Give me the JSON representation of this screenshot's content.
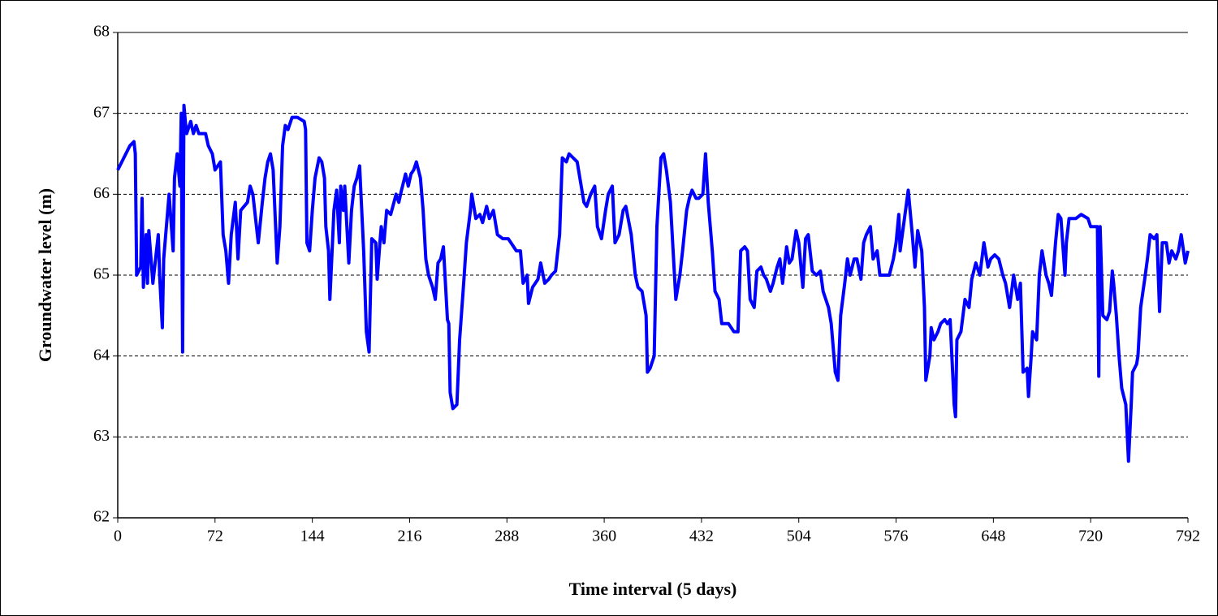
{
  "chart_data": {
    "type": "line",
    "xlabel": "Time interval (5 days)",
    "ylabel": "Groundwater level (m)",
    "color": "#0000ff",
    "grid": true,
    "xlim": [
      0,
      792
    ],
    "ylim": [
      62,
      68
    ],
    "xticks": [
      0,
      72,
      144,
      216,
      288,
      360,
      432,
      504,
      576,
      648,
      720,
      792
    ],
    "yticks": [
      62,
      63,
      64,
      65,
      66,
      67,
      68
    ],
    "x": [
      0,
      3,
      9,
      12,
      13,
      14,
      17,
      18,
      19,
      21,
      22,
      23,
      26,
      28,
      30,
      31,
      33,
      34,
      37,
      38,
      41,
      42,
      44,
      46,
      47,
      48,
      49,
      50,
      51,
      54,
      56,
      58,
      60,
      65,
      67,
      70,
      72,
      76,
      78,
      80,
      82,
      84,
      87,
      89,
      91,
      96,
      98,
      100,
      102,
      104,
      107,
      109,
      111,
      113,
      115,
      118,
      120,
      122,
      124,
      126,
      129,
      133,
      138,
      139,
      140,
      142,
      144,
      146,
      149,
      151,
      153,
      154,
      156,
      157,
      160,
      162,
      164,
      165,
      167,
      168,
      171,
      173,
      175,
      177,
      179,
      182,
      184,
      186,
      188,
      191,
      192,
      194,
      195,
      197,
      199,
      202,
      206,
      208,
      210,
      213,
      215,
      217,
      219,
      221,
      224,
      226,
      228,
      230,
      233,
      235,
      237,
      239,
      241,
      244,
      245,
      246,
      248,
      251,
      253,
      256,
      258,
      261,
      262,
      265,
      268,
      270,
      273,
      275,
      278,
      281,
      285,
      289,
      293,
      295,
      298,
      300,
      303,
      304,
      307,
      311,
      313,
      316,
      319,
      321,
      324,
      327,
      329,
      332,
      334,
      337,
      340,
      342,
      345,
      347,
      350,
      353,
      355,
      358,
      361,
      363,
      366,
      368,
      371,
      374,
      376,
      380,
      383,
      385,
      388,
      391,
      392,
      394,
      397,
      399,
      402,
      404,
      406,
      409,
      411,
      413,
      416,
      418,
      421,
      423,
      425,
      428,
      430,
      433,
      435,
      437,
      440,
      442,
      445,
      447,
      452,
      456,
      459,
      461,
      464,
      466,
      468,
      471,
      473,
      476,
      478,
      480,
      483,
      485,
      488,
      490,
      492,
      495,
      497,
      499,
      502,
      504,
      507,
      509,
      511,
      514,
      517,
      520,
      522,
      526,
      528,
      531,
      533,
      535,
      538,
      540,
      542,
      545,
      547,
      550,
      552,
      554,
      557,
      559,
      562,
      564,
      571,
      574,
      576,
      578,
      579,
      583,
      585,
      588,
      590,
      592,
      595,
      597,
      598,
      601,
      602,
      604,
      607,
      609,
      612,
      614,
      616,
      619,
      620,
      621,
      624,
      627,
      630,
      632,
      635,
      638,
      641,
      644,
      646,
      649,
      652,
      655,
      657,
      660,
      663,
      666,
      668,
      670,
      673,
      674,
      676,
      677,
      680,
      682,
      684,
      687,
      689,
      691,
      694,
      696,
      698,
      701,
      702,
      704,
      709,
      713,
      718,
      720,
      723,
      725,
      726,
      727,
      729,
      732,
      734,
      736,
      737,
      739,
      741,
      743,
      746,
      748,
      750,
      751,
      754,
      755,
      757,
      760,
      762,
      764,
      767,
      769,
      771,
      773,
      776,
      778,
      780,
      783,
      785,
      787,
      790,
      792
    ],
    "values": [
      66.3,
      66.4,
      66.6,
      66.65,
      66.5,
      65.0,
      65.1,
      65.95,
      64.85,
      65.5,
      64.9,
      65.55,
      64.9,
      65.2,
      65.5,
      65.0,
      64.35,
      65.2,
      65.8,
      66.0,
      65.3,
      66.2,
      66.5,
      66.1,
      67.0,
      64.05,
      67.1,
      66.9,
      66.75,
      66.9,
      66.75,
      66.85,
      66.75,
      66.75,
      66.6,
      66.5,
      66.3,
      66.4,
      65.5,
      65.3,
      64.9,
      65.5,
      65.9,
      65.2,
      65.8,
      65.9,
      66.1,
      66.0,
      65.7,
      65.4,
      65.9,
      66.2,
      66.4,
      66.5,
      66.3,
      65.15,
      65.6,
      66.6,
      66.85,
      66.8,
      66.95,
      66.95,
      66.9,
      66.8,
      65.4,
      65.3,
      65.8,
      66.2,
      66.45,
      66.4,
      66.2,
      65.6,
      65.3,
      64.7,
      65.8,
      66.05,
      65.4,
      66.1,
      65.8,
      66.1,
      65.15,
      65.8,
      66.1,
      66.2,
      66.35,
      65.3,
      64.3,
      64.05,
      65.45,
      65.4,
      64.95,
      65.4,
      65.6,
      65.4,
      65.8,
      65.75,
      66.0,
      65.9,
      66.05,
      66.25,
      66.1,
      66.25,
      66.3,
      66.4,
      66.2,
      65.8,
      65.2,
      65.0,
      64.85,
      64.7,
      65.15,
      65.2,
      65.35,
      64.45,
      64.4,
      63.55,
      63.35,
      63.4,
      64.2,
      64.9,
      65.4,
      65.8,
      66.0,
      65.7,
      65.75,
      65.65,
      65.85,
      65.7,
      65.8,
      65.5,
      65.45,
      65.45,
      65.35,
      65.3,
      65.3,
      64.9,
      65.0,
      64.65,
      64.85,
      64.95,
      65.15,
      64.9,
      64.95,
      65.0,
      65.05,
      65.5,
      66.45,
      66.4,
      66.5,
      66.45,
      66.4,
      66.2,
      65.9,
      65.85,
      66.0,
      66.1,
      65.6,
      65.45,
      65.8,
      66.0,
      66.1,
      65.4,
      65.5,
      65.8,
      65.85,
      65.5,
      65.0,
      64.85,
      64.8,
      64.5,
      63.8,
      63.85,
      64.0,
      65.6,
      66.45,
      66.5,
      66.3,
      65.9,
      65.3,
      64.7,
      65.0,
      65.3,
      65.8,
      65.95,
      66.05,
      65.95,
      65.95,
      66.0,
      66.5,
      65.9,
      65.3,
      64.8,
      64.7,
      64.4,
      64.4,
      64.3,
      64.3,
      65.3,
      65.35,
      65.3,
      64.7,
      64.6,
      65.05,
      65.1,
      65.0,
      64.95,
      64.8,
      64.9,
      65.1,
      65.2,
      64.9,
      65.35,
      65.15,
      65.2,
      65.55,
      65.4,
      64.85,
      65.45,
      65.5,
      65.05,
      65.0,
      65.05,
      64.8,
      64.6,
      64.4,
      63.8,
      63.7,
      64.5,
      64.9,
      65.2,
      65.0,
      65.2,
      65.2,
      64.95,
      65.4,
      65.5,
      65.6,
      65.2,
      65.3,
      65.0,
      65.0,
      65.2,
      65.4,
      65.75,
      65.3,
      65.8,
      66.05,
      65.5,
      65.1,
      65.55,
      65.3,
      64.6,
      63.7,
      64.0,
      64.35,
      64.2,
      64.3,
      64.4,
      64.45,
      64.4,
      64.45,
      63.4,
      63.25,
      64.2,
      64.3,
      64.7,
      64.6,
      64.95,
      65.15,
      65.0,
      65.4,
      65.1,
      65.2,
      65.25,
      65.2,
      65.0,
      64.9,
      64.6,
      65.0,
      64.7,
      64.9,
      63.8,
      63.85,
      63.5,
      64.0,
      64.3,
      64.2,
      65.0,
      65.3,
      65.0,
      64.9,
      64.75,
      65.4,
      65.75,
      65.7,
      65.0,
      65.4,
      65.7,
      65.7,
      65.75,
      65.7,
      65.6,
      65.6,
      65.6,
      63.75,
      65.6,
      64.5,
      64.45,
      64.55,
      65.05,
      64.9,
      64.5,
      64.0,
      63.6,
      63.4,
      62.7,
      63.4,
      63.8,
      63.9,
      64.0,
      64.6,
      64.95,
      65.2,
      65.5,
      65.45,
      65.5,
      64.55,
      65.4,
      65.4,
      65.15,
      65.3,
      65.2,
      65.3,
      65.5,
      65.15,
      65.3
    ]
  }
}
